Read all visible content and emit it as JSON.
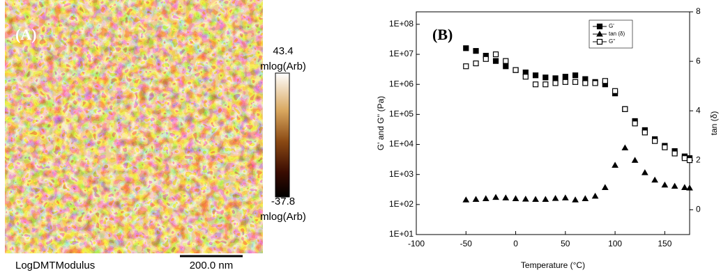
{
  "panel_a": {
    "label": "(A)",
    "colorbar": {
      "max": 43.4,
      "max_unit": "mlog(Arb)",
      "min": -37.8,
      "min_unit": "mlog(Arb)"
    },
    "channel": "LogDMTModulus",
    "scale_bar": "200.0 nm"
  },
  "chart_data": {
    "type": "line",
    "panel_label": "(B)",
    "x_label": "Temperature (°C)",
    "y_label": "G' and G'' (Pa)",
    "y2_label": "tan (δ)",
    "x": [
      -50,
      -40,
      -30,
      -20,
      -10,
      0,
      10,
      20,
      30,
      40,
      50,
      60,
      70,
      80,
      90,
      100,
      110,
      120,
      130,
      140,
      150,
      160,
      170,
      175
    ],
    "series": [
      {
        "name": "G'",
        "color": "#000000",
        "marker": "square",
        "filled": true,
        "values": [
          16000000,
          13000000,
          9000000,
          6000000,
          4000000,
          3000000,
          2500000,
          2000000,
          1700000,
          1600000,
          1800000,
          2000000,
          1500000,
          1200000,
          1000000,
          500000,
          150000,
          60000,
          30000,
          15000,
          9000,
          6000,
          4000,
          3500
        ]
      },
      {
        "name": "tan (δ)",
        "color": "#000000",
        "marker": "triangle",
        "filled": true,
        "axis": "y2",
        "values": [
          0.4,
          0.42,
          0.45,
          0.5,
          0.48,
          0.45,
          0.43,
          0.42,
          0.42,
          0.46,
          0.48,
          0.4,
          0.45,
          0.55,
          0.9,
          1.8,
          2.5,
          2.0,
          1.5,
          1.2,
          1.0,
          0.95,
          0.9,
          0.88
        ]
      },
      {
        "name": "G\"",
        "color": "#000000",
        "marker": "square",
        "filled": false,
        "values": [
          4000000,
          5000000,
          7000000,
          10000000,
          6000000,
          3000000,
          1800000,
          1000000,
          1000000,
          1100000,
          1200000,
          1200000,
          1100000,
          1100000,
          1300000,
          600000,
          150000,
          50000,
          25000,
          13000,
          8000,
          5000,
          3500,
          3000
        ]
      }
    ],
    "xlim": [
      -100,
      175
    ],
    "xticks": [
      -100,
      -50,
      0,
      50,
      100,
      150
    ],
    "ylim": [
      10,
      260000000
    ],
    "log_y": true,
    "yticks": [
      {
        "value": 10,
        "label": "1E+01"
      },
      {
        "value": 100,
        "label": "1E+02"
      },
      {
        "value": 1000,
        "label": "1E+03"
      },
      {
        "value": 10000,
        "label": "1E+04"
      },
      {
        "value": 100000,
        "label": "1E+05"
      },
      {
        "value": 1000000,
        "label": "1E+06"
      },
      {
        "value": 10000000,
        "label": "1E+07"
      },
      {
        "value": 100000000,
        "label": "1E+08"
      }
    ],
    "y2lim": [
      -1,
      8
    ],
    "y2ticks": [
      0,
      2,
      4,
      6,
      8
    ],
    "grid": false,
    "legend": "top-right"
  }
}
